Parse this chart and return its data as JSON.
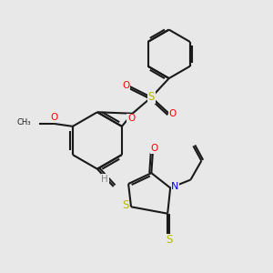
{
  "bg_color": "#e8e8e8",
  "bond_color": "#1a1a1a",
  "bond_width": 1.5,
  "atom_colors": {
    "O": "#ff0000",
    "N": "#0000ff",
    "S": "#b8b800",
    "H": "#888888"
  },
  "figsize": [
    3.0,
    3.0
  ],
  "dpi": 100
}
